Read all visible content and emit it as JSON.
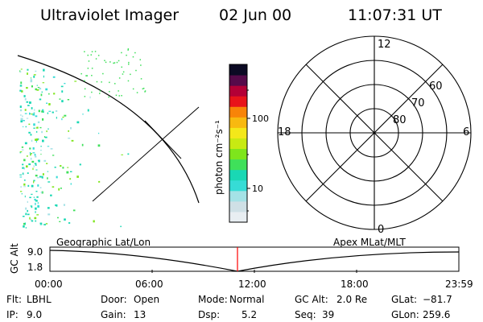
{
  "header": {
    "instrument": "Ultraviolet Imager",
    "date": "02 Jun 00",
    "time": "11:07:31 UT"
  },
  "colorbar": {
    "unit_label": "photon cm⁻²s⁻¹",
    "tick_labels": [
      "100",
      "10"
    ],
    "colors": [
      "#e8eef2",
      "#cfe0e6",
      "#a4e2e6",
      "#36dcd6",
      "#19d8b4",
      "#3fe05a",
      "#7ee51c",
      "#c8ea12",
      "#f4e81a",
      "#f8b910",
      "#f88408",
      "#e8141a",
      "#b30036",
      "#560a4a",
      "#0c0a24"
    ]
  },
  "polar_plot": {
    "lat_labels": [
      "60",
      "70",
      "80"
    ],
    "mlt_labels": [
      "12",
      "18",
      "6",
      "0"
    ]
  },
  "strip": {
    "axis_label": "GC Alt",
    "y_ticks": [
      "9.0",
      "1.8"
    ],
    "left_label": "Geographic Lat/Lon",
    "right_label": "Apex MLat/MLT",
    "time_ticks": [
      "00:00",
      "06:00",
      "12:00",
      "18:00",
      "23:59"
    ],
    "marker_color": "#ff0000"
  },
  "info": {
    "row1": [
      {
        "label": "Flt:",
        "value": "LBHL"
      },
      {
        "label": "Door:",
        "value": "Open"
      },
      {
        "label": "Mode:",
        "value": "Normal"
      },
      {
        "label": "GC Alt:",
        "value": "2.0 Re"
      },
      {
        "label": "GLat:",
        "value": "−81.7"
      }
    ],
    "row2": [
      {
        "label": "IP:",
        "value": "9.0"
      },
      {
        "label": "Gain:",
        "value": "13"
      },
      {
        "label": "Dsp:",
        "value": "5.2"
      },
      {
        "label": "Seq:",
        "value": "39"
      },
      {
        "label": "GLon:",
        "value": "259.6"
      }
    ]
  }
}
